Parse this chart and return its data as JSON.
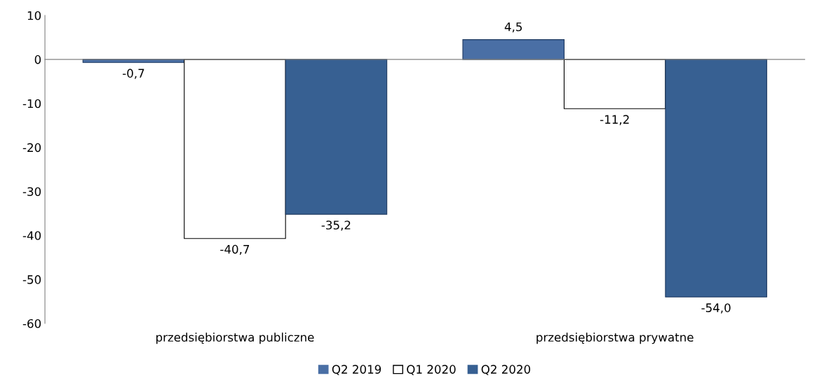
{
  "chart_data": {
    "type": "bar",
    "categories": [
      "przedsiębiorstwa publiczne",
      "przedsiębiorstwa prywatne"
    ],
    "series": [
      {
        "name": "Q2 2019",
        "color": "#4a6fa5",
        "values": [
          -0.7,
          4.5
        ],
        "value_labels": [
          "-0,7",
          "4,5"
        ]
      },
      {
        "name": "Q1 2020",
        "color": "#ffffff",
        "values": [
          -40.7,
          -11.2
        ],
        "value_labels": [
          "-40,7",
          "-11,2"
        ]
      },
      {
        "name": "Q2 2020",
        "color": "#376092",
        "values": [
          -35.2,
          -54.0
        ],
        "value_labels": [
          "-35,2",
          "-54,0"
        ]
      }
    ],
    "ylim": [
      -60,
      10
    ],
    "yticks": [
      -60,
      -50,
      -40,
      -30,
      -20,
      -10,
      0,
      10
    ],
    "legend": "bottom"
  }
}
